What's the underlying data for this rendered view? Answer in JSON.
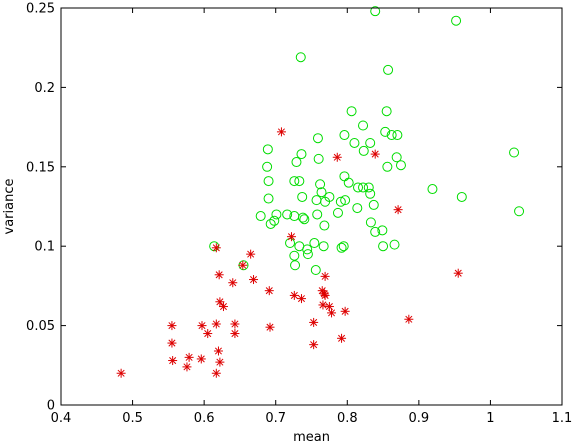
{
  "chart_data": {
    "type": "scatter",
    "xlabel": "mean",
    "ylabel": "variance",
    "xlim": [
      0.4,
      1.1
    ],
    "ylim": [
      0,
      0.25
    ],
    "x_ticks": [
      0.4,
      0.5,
      0.6,
      0.7,
      0.8,
      0.9,
      1,
      1.1
    ],
    "x_tick_labels": [
      "0.4",
      "0.5",
      "0.6",
      "0.7",
      "0.8",
      "0.9",
      "1",
      "1.1"
    ],
    "y_ticks": [
      0,
      0.05,
      0.1,
      0.15,
      0.2,
      0.25
    ],
    "y_tick_labels": [
      "0",
      "0.05",
      "0.1",
      "0.15",
      "0.2",
      "0.25"
    ],
    "grid": false,
    "legend": "none",
    "series": [
      {
        "marker": "circle-open",
        "color": "#00dd00",
        "points": [
          [
            0.839,
            0.248
          ],
          [
            0.952,
            0.242
          ],
          [
            0.735,
            0.219
          ],
          [
            0.857,
            0.211
          ],
          [
            0.806,
            0.185
          ],
          [
            0.855,
            0.185
          ],
          [
            0.822,
            0.176
          ],
          [
            0.853,
            0.172
          ],
          [
            0.862,
            0.17
          ],
          [
            0.87,
            0.17
          ],
          [
            0.796,
            0.17
          ],
          [
            0.759,
            0.168
          ],
          [
            0.689,
            0.161
          ],
          [
            0.832,
            0.165
          ],
          [
            0.81,
            0.165
          ],
          [
            0.823,
            0.16
          ],
          [
            0.736,
            0.158
          ],
          [
            0.729,
            0.153
          ],
          [
            0.76,
            0.155
          ],
          [
            0.688,
            0.15
          ],
          [
            0.869,
            0.156
          ],
          [
            0.856,
            0.15
          ],
          [
            0.875,
            0.151
          ],
          [
            1.033,
            0.159
          ],
          [
            0.796,
            0.144
          ],
          [
            0.802,
            0.14
          ],
          [
            0.733,
            0.141
          ],
          [
            0.726,
            0.141
          ],
          [
            0.762,
            0.139
          ],
          [
            0.69,
            0.141
          ],
          [
            0.815,
            0.137
          ],
          [
            0.822,
            0.137
          ],
          [
            0.83,
            0.137
          ],
          [
            0.832,
            0.133
          ],
          [
            0.764,
            0.134
          ],
          [
            0.737,
            0.131
          ],
          [
            0.919,
            0.136
          ],
          [
            0.96,
            0.131
          ],
          [
            0.775,
            0.131
          ],
          [
            0.757,
            0.129
          ],
          [
            0.769,
            0.128
          ],
          [
            0.791,
            0.128
          ],
          [
            0.797,
            0.129
          ],
          [
            0.69,
            0.13
          ],
          [
            0.814,
            0.124
          ],
          [
            0.837,
            0.126
          ],
          [
            0.716,
            0.12
          ],
          [
            0.679,
            0.119
          ],
          [
            0.701,
            0.12
          ],
          [
            0.726,
            0.119
          ],
          [
            0.738,
            0.118
          ],
          [
            0.74,
            0.117
          ],
          [
            0.758,
            0.12
          ],
          [
            0.787,
            0.121
          ],
          [
            1.04,
            0.122
          ],
          [
            0.698,
            0.116
          ],
          [
            0.693,
            0.114
          ],
          [
            0.768,
            0.113
          ],
          [
            0.833,
            0.115
          ],
          [
            0.849,
            0.11
          ],
          [
            0.839,
            0.109
          ],
          [
            0.754,
            0.102
          ],
          [
            0.767,
            0.1
          ],
          [
            0.792,
            0.099
          ],
          [
            0.72,
            0.102
          ],
          [
            0.733,
            0.1
          ],
          [
            0.744,
            0.098
          ],
          [
            0.745,
            0.095
          ],
          [
            0.726,
            0.094
          ],
          [
            0.727,
            0.088
          ],
          [
            0.614,
            0.1
          ],
          [
            0.756,
            0.085
          ],
          [
            0.795,
            0.1
          ],
          [
            0.85,
            0.1
          ],
          [
            0.866,
            0.101
          ],
          [
            0.655,
            0.088
          ]
        ]
      },
      {
        "marker": "asterisk",
        "color": "#dd0000",
        "points": [
          [
            0.708,
            0.172
          ],
          [
            0.839,
            0.158
          ],
          [
            0.786,
            0.156
          ],
          [
            0.871,
            0.123
          ],
          [
            0.722,
            0.106
          ],
          [
            0.617,
            0.099
          ],
          [
            0.665,
            0.095
          ],
          [
            0.654,
            0.088
          ],
          [
            0.621,
            0.082
          ],
          [
            0.769,
            0.081
          ],
          [
            0.64,
            0.077
          ],
          [
            0.669,
            0.079
          ],
          [
            0.955,
            0.083
          ],
          [
            0.691,
            0.072
          ],
          [
            0.765,
            0.072
          ],
          [
            0.768,
            0.07
          ],
          [
            0.769,
            0.069
          ],
          [
            0.726,
            0.069
          ],
          [
            0.736,
            0.067
          ],
          [
            0.622,
            0.065
          ],
          [
            0.627,
            0.062
          ],
          [
            0.775,
            0.062
          ],
          [
            0.766,
            0.063
          ],
          [
            0.778,
            0.058
          ],
          [
            0.797,
            0.059
          ],
          [
            0.886,
            0.054
          ],
          [
            0.555,
            0.05
          ],
          [
            0.597,
            0.05
          ],
          [
            0.617,
            0.051
          ],
          [
            0.643,
            0.051
          ],
          [
            0.692,
            0.049
          ],
          [
            0.753,
            0.052
          ],
          [
            0.605,
            0.045
          ],
          [
            0.643,
            0.045
          ],
          [
            0.792,
            0.042
          ],
          [
            0.555,
            0.039
          ],
          [
            0.62,
            0.034
          ],
          [
            0.753,
            0.038
          ],
          [
            0.579,
            0.03
          ],
          [
            0.556,
            0.028
          ],
          [
            0.596,
            0.029
          ],
          [
            0.622,
            0.027
          ],
          [
            0.576,
            0.024
          ],
          [
            0.617,
            0.02
          ],
          [
            0.484,
            0.02
          ]
        ]
      }
    ]
  }
}
